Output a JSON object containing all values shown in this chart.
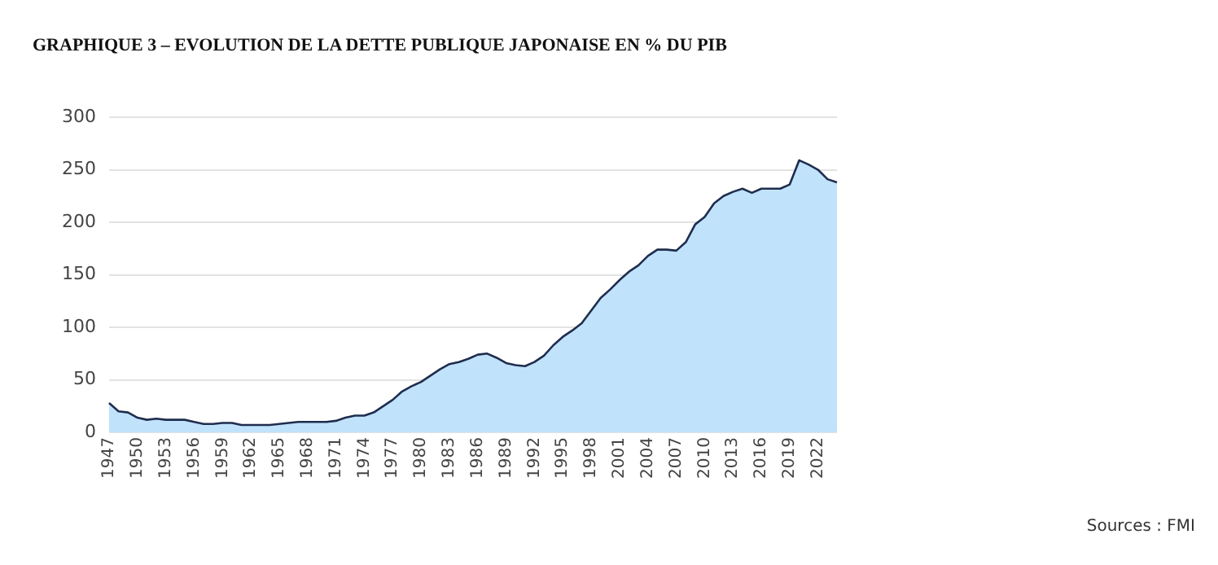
{
  "chart_data": {
    "type": "area",
    "title": "GRAPHIQUE 3 – EVOLUTION DE LA DETTE PUBLIQUE JAPONAISE EN % DU PIB",
    "categories": [
      "1947",
      null,
      null,
      "1950",
      null,
      null,
      "1953",
      null,
      null,
      "1956",
      null,
      null,
      "1959",
      null,
      null,
      "1962",
      null,
      null,
      "1965",
      null,
      null,
      "1968",
      null,
      null,
      "1971",
      null,
      null,
      "1974",
      null,
      null,
      "1977",
      null,
      null,
      "1980",
      null,
      null,
      "1983",
      null,
      null,
      "1986",
      null,
      null,
      "1989",
      null,
      null,
      "1992",
      null,
      null,
      "1995",
      null,
      null,
      "1998",
      null,
      null,
      "2001",
      null,
      null,
      "2004",
      null,
      null,
      "2007",
      null,
      null,
      "2010",
      null,
      null,
      "2013",
      null,
      null,
      "2016",
      null,
      null,
      "2019",
      null,
      null,
      "2022",
      null,
      null
    ],
    "series": [
      {
        "color": "#c1e2fb",
        "values": [
          28,
          20,
          19,
          14,
          12,
          13,
          12,
          12,
          12,
          10,
          8,
          8,
          9,
          9,
          7,
          7,
          7,
          7,
          8,
          9,
          10,
          10,
          10,
          10,
          11,
          14,
          16,
          16,
          19,
          25,
          31,
          39,
          44,
          48,
          54,
          60,
          65,
          67,
          70,
          74,
          75,
          71,
          66,
          64,
          63,
          67,
          73,
          83,
          91,
          97,
          104,
          116,
          128,
          136,
          145,
          153,
          159,
          168,
          174,
          174,
          173,
          181,
          198,
          205,
          218,
          225,
          229,
          232,
          228,
          232,
          232,
          232,
          236,
          259,
          255,
          250,
          241,
          238
        ]
      }
    ],
    "ylim": [
      0,
      300
    ],
    "yticks": [
      0,
      50,
      100,
      150,
      200,
      250,
      300
    ],
    "grid": "y",
    "legend": false,
    "annotations": [
      "Sources : FMI"
    ]
  }
}
